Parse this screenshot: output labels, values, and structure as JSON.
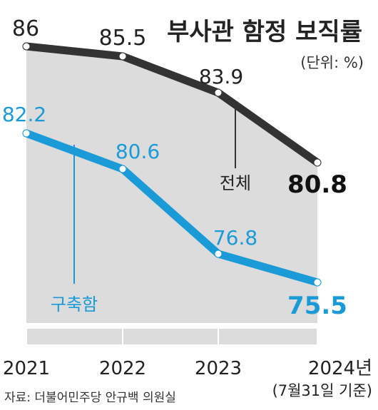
{
  "chart_data": {
    "type": "line",
    "title": "부사관 함정 보직률",
    "unit_note": "(단위: %)",
    "categories": [
      "2021",
      "2022",
      "2023",
      "2024년"
    ],
    "category_note": "(7월31일 기준)",
    "series": [
      {
        "name": "전체",
        "values": [
          86,
          85.5,
          83.9,
          80.8
        ],
        "value_labels": [
          "86",
          "85.5",
          "83.9",
          "80.8"
        ],
        "color": "#333333"
      },
      {
        "name": "구축함",
        "values": [
          82.2,
          80.6,
          76.8,
          75.5
        ],
        "value_labels": [
          "82.2",
          "80.6",
          "76.8",
          "75.5"
        ],
        "color": "#1a9ad6"
      }
    ],
    "source": "자료: 더불어민주당 안규백 의원실",
    "grid": false,
    "legend": "inline-labels",
    "colors": {
      "area": "#dcdcdc",
      "total": "#333333",
      "destroyer": "#1a9ad6"
    }
  }
}
